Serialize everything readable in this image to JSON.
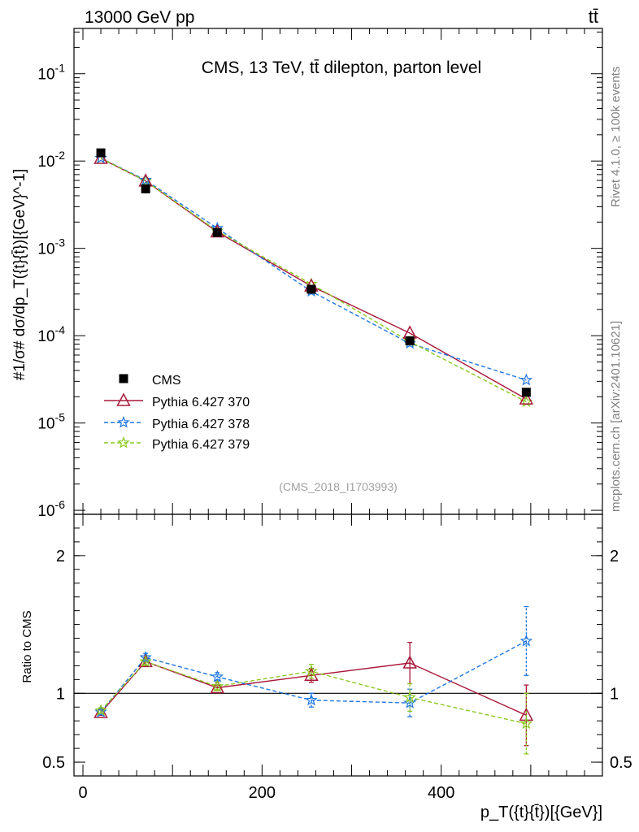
{
  "header": {
    "energy_label": "13000 GeV pp",
    "process_label": "tt̄"
  },
  "side_labels": {
    "rivet": "Rivet 4.1.0, ≥ 100k events",
    "mcplots": "mcplots.cern.ch [arXiv:2401.10621]"
  },
  "chart_data": [
    {
      "id": "main",
      "type": "scatter",
      "title": "CMS, 13 TeV, tt̄ dilepton, parton level",
      "watermark": "(CMS_2018_I1703993)",
      "xlabel": "p_T({t}{t̄})[{GeV}]",
      "ylabel": "#1/σ# dσ/dp_T({t}{t̄})[{GeV}^-1]",
      "yscale": "log",
      "xlim": [
        -10,
        580
      ],
      "ylim": [
        9e-07,
        0.33
      ],
      "ytick_labels": [
        "10^-6",
        "10^-5",
        "10^-4",
        "10^-3",
        "10^-2",
        "10^-1"
      ],
      "x": [
        20,
        70,
        150,
        255,
        365,
        495
      ],
      "series": [
        {
          "name": "CMS",
          "color": "#000000",
          "marker": "square",
          "line": "none",
          "values": [
            0.0124,
            0.0048,
            0.00152,
            0.00034,
            8.75e-05,
            2.25e-05
          ]
        },
        {
          "name": "Pythia 6.427 370",
          "color": "#a8183a",
          "marker": "triangle",
          "line": "solid",
          "values": [
            0.0107,
            0.0059,
            0.00154,
            0.00037,
            0.000107,
            1.88e-05
          ]
        },
        {
          "name": "Pythia 6.427 378",
          "color": "#1f77e0",
          "marker": "star",
          "line": "dashed",
          "values": [
            0.0108,
            0.00605,
            0.0017,
            0.000322,
            8.15e-05,
            3.1e-05
          ]
        },
        {
          "name": "Pythia 6.427 379",
          "color": "#8bc820",
          "marker": "star",
          "line": "dashed",
          "values": [
            0.0108,
            0.0059,
            0.00158,
            0.00039,
            8.55e-05,
            1.75e-05
          ]
        }
      ],
      "legend_position": "bottom-left"
    },
    {
      "id": "ratio",
      "type": "line",
      "ylabel": "Ratio to CMS",
      "xlim": [
        -10,
        580
      ],
      "ylim": [
        0.4,
        2.3
      ],
      "yticks": [
        0.5,
        1,
        2
      ],
      "ytick_labels": [
        "0.5",
        "1",
        "2"
      ],
      "xticks": [
        0,
        200,
        400
      ],
      "xtick_labels": [
        "0",
        "200",
        "400"
      ],
      "reference_line": 1,
      "x": [
        20,
        70,
        150,
        255,
        365,
        495
      ],
      "series": [
        {
          "name": "Pythia 6.427 370",
          "color": "#a8183a",
          "marker": "triangle",
          "line": "solid",
          "values": [
            0.86,
            1.23,
            1.04,
            1.13,
            1.22,
            0.84
          ],
          "errors": [
            0.02,
            0.03,
            0.02,
            0.05,
            0.15,
            0.22
          ]
        },
        {
          "name": "Pythia 6.427 378",
          "color": "#1f77e0",
          "marker": "star",
          "line": "dashed",
          "values": [
            0.865,
            1.26,
            1.12,
            0.95,
            0.93,
            1.38
          ],
          "errors": [
            0.02,
            0.03,
            0.03,
            0.05,
            0.1,
            0.25
          ]
        },
        {
          "name": "Pythia 6.427 379",
          "color": "#8bc820",
          "marker": "star",
          "line": "dashed",
          "values": [
            0.875,
            1.23,
            1.05,
            1.16,
            0.97,
            0.78
          ],
          "errors": [
            0.02,
            0.03,
            0.03,
            0.05,
            0.1,
            0.22
          ]
        }
      ]
    }
  ]
}
